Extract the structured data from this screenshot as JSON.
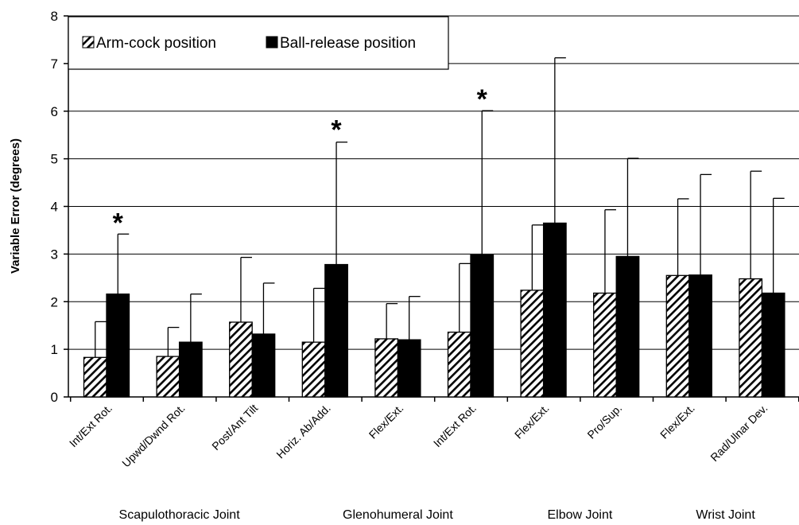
{
  "chart_data": {
    "type": "bar",
    "title": "",
    "xlabel": "",
    "ylabel": "Variable Error (degrees)",
    "ylim": [
      0,
      8
    ],
    "yticks": [
      "0",
      "1",
      "2",
      "3",
      "4",
      "5",
      "6",
      "7",
      "8"
    ],
    "grid": true,
    "legend_position": "top-left",
    "categories": [
      "Int/Ext Rot.",
      "Upwd/Dwnd Rot.",
      "Post/Ant Tilt",
      "Horiz. Ab/Add.",
      "Flex/Ext.",
      "Int/Ext Rot.",
      "Flex/Ext.",
      "Pro/Sup.",
      "Flex/Ext.",
      "Rad/Ulnar Dev."
    ],
    "groups": [
      {
        "label": "Scapulothoracic Joint",
        "start": 0,
        "end": 2
      },
      {
        "label": "Glenohumeral Joint",
        "start": 3,
        "end": 5
      },
      {
        "label": "Elbow Joint",
        "start": 6,
        "end": 7
      },
      {
        "label": "Wrist Joint",
        "start": 8,
        "end": 9
      }
    ],
    "series": [
      {
        "name": "Arm-cock position",
        "pattern": "hatched",
        "values": [
          0.83,
          0.85,
          1.57,
          1.15,
          1.22,
          1.36,
          2.24,
          2.18,
          2.55,
          2.48
        ],
        "error_upper": [
          1.58,
          1.46,
          2.93,
          2.28,
          1.96,
          2.8,
          3.61,
          3.93,
          4.16,
          4.74
        ]
      },
      {
        "name": "Ball-release position",
        "pattern": "solid",
        "color": "#000000",
        "values": [
          2.16,
          1.15,
          1.32,
          2.78,
          1.2,
          2.98,
          3.65,
          2.95,
          2.56,
          2.18
        ],
        "error_upper": [
          3.42,
          2.16,
          2.39,
          5.35,
          2.11,
          6.01,
          7.12,
          5.01,
          4.67,
          4.17
        ]
      }
    ],
    "annotations": [
      {
        "text": "*",
        "category_index": 0,
        "y": 3.8
      },
      {
        "text": "*",
        "category_index": 3,
        "y": 5.75
      },
      {
        "text": "*",
        "category_index": 5,
        "y": 6.4
      }
    ]
  }
}
